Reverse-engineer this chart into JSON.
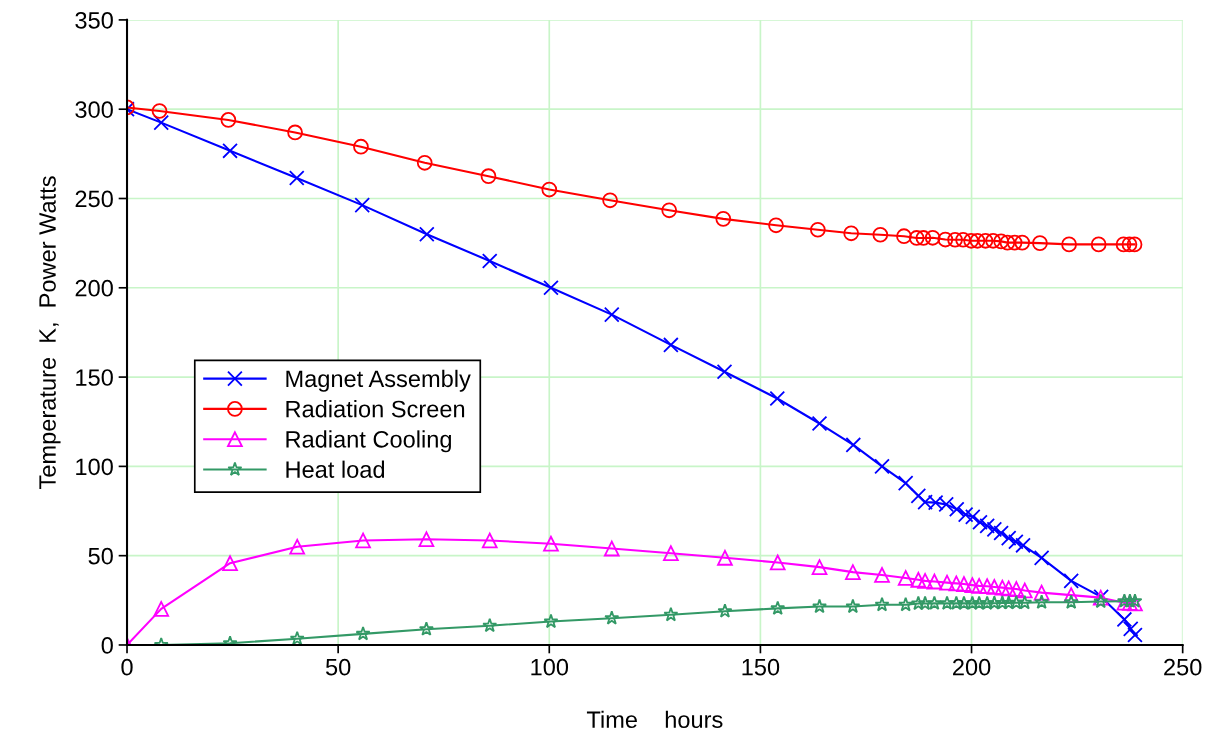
{
  "chart_data": {
    "type": "line",
    "xlabel": "Time    hours",
    "ylabel": "Temperature  K,  Power Watts",
    "xlim": [
      0,
      250
    ],
    "xticks": [
      0,
      50,
      100,
      150,
      200,
      250
    ],
    "ylim": [
      0,
      350
    ],
    "yticks": [
      0,
      50,
      100,
      150,
      200,
      250,
      300,
      350
    ],
    "grid": true,
    "legend": "left",
    "line_style": "solid",
    "series": [
      {
        "name": "Magnet Assembly",
        "color": "#0000ff",
        "marker": "cross",
        "x": [
          0,
          8.1,
          24.4,
          40.2,
          55.7,
          71,
          85.9,
          100.4,
          114.8,
          128.8,
          141.5,
          154,
          164,
          172,
          178.8,
          184.4,
          187.4,
          189,
          191.5,
          194,
          196.5,
          198.6,
          200.3,
          202,
          203.7,
          205.4,
          207,
          208.8,
          210.5,
          212.2,
          216.6,
          223.6,
          230.7,
          236.2,
          237.7,
          238.7
        ],
        "values": [
          300,
          292.5,
          276.7,
          261.5,
          246.3,
          230,
          215,
          200,
          185,
          168,
          153,
          138,
          124,
          112,
          100,
          90.6,
          83.5,
          80,
          79.7,
          78.7,
          76,
          73,
          71.7,
          68.7,
          66.7,
          64.7,
          62.7,
          59.8,
          57.8,
          55.8,
          48.8,
          35.9,
          26.9,
          14.3,
          9,
          5.6
        ]
      },
      {
        "name": "Radiation Screen",
        "color": "#ff0000",
        "marker": "circle",
        "x": [
          0,
          7.7,
          24,
          39.8,
          55.4,
          70.5,
          85.6,
          100,
          114.4,
          128.4,
          141.2,
          153.7,
          163.6,
          171.5,
          178.4,
          184,
          187,
          188.6,
          190.8,
          193.8,
          196.1,
          198,
          199.9,
          201.4,
          203.3,
          205.1,
          207,
          208.5,
          210.2,
          212,
          216.2,
          223.1,
          230.1,
          236,
          237.4,
          238.6
        ],
        "values": [
          301,
          299,
          294,
          287,
          279,
          270,
          262.5,
          255,
          249,
          243.4,
          238.6,
          235,
          232.5,
          230.5,
          229.7,
          228.9,
          227.9,
          227.9,
          228,
          227,
          226.9,
          226.9,
          226.3,
          226.3,
          226.3,
          226.3,
          226,
          225.3,
          225.3,
          225.3,
          225,
          224.3,
          224.3,
          224.3,
          224.3,
          224.3
        ]
      },
      {
        "name": "Radiant Cooling",
        "color": "#ff00ff",
        "marker": "triangle",
        "x": [
          0,
          8.1,
          24.4,
          40.3,
          55.9,
          70.9,
          85.9,
          100.4,
          114.8,
          128.8,
          141.6,
          154.1,
          164,
          171.9,
          178.8,
          184.4,
          187.4,
          189,
          191.2,
          194.2,
          196.4,
          198.2,
          200.2,
          201.8,
          203.7,
          205.4,
          207.3,
          208.8,
          210.6,
          212.6,
          216.6,
          223.6,
          230.6,
          236.2,
          237.5,
          238.7
        ],
        "values": [
          0,
          20.2,
          45.8,
          55,
          58.5,
          59.2,
          58.5,
          56.7,
          54,
          51.4,
          48.8,
          46.2,
          43.6,
          40.8,
          39.2,
          37.5,
          36.5,
          35.9,
          35.5,
          34.9,
          34.5,
          34.1,
          33.5,
          33.1,
          32.9,
          32.5,
          32.1,
          31.7,
          31.3,
          30.5,
          29.3,
          27.9,
          26.5,
          23.7,
          23.5,
          23.3
        ]
      },
      {
        "name": "Heat load",
        "color": "#339966",
        "marker": "star",
        "x": [
          8.1,
          24.4,
          40.3,
          55.9,
          70.9,
          85.9,
          100.4,
          114.8,
          128.8,
          141.6,
          154.1,
          164,
          171.9,
          178.8,
          184.4,
          187.4,
          189,
          191.2,
          194.2,
          196.4,
          198.2,
          200.2,
          201.8,
          203.7,
          205.4,
          207.3,
          208.8,
          210.6,
          212.6,
          216.6,
          223.6,
          230.6,
          236.2,
          237.5,
          238.7
        ],
        "values": [
          0,
          1,
          3.5,
          6.2,
          8.8,
          10.8,
          13.1,
          15,
          16.9,
          18.9,
          20.5,
          21.5,
          21.5,
          22.5,
          22.5,
          23.2,
          23.2,
          23.3,
          23.3,
          23.3,
          23.3,
          23.3,
          23.3,
          23.3,
          23.4,
          23.5,
          23.5,
          23.6,
          23.6,
          23.9,
          23.9,
          24.3,
          24.5,
          24.5,
          24.5
        ]
      }
    ]
  }
}
